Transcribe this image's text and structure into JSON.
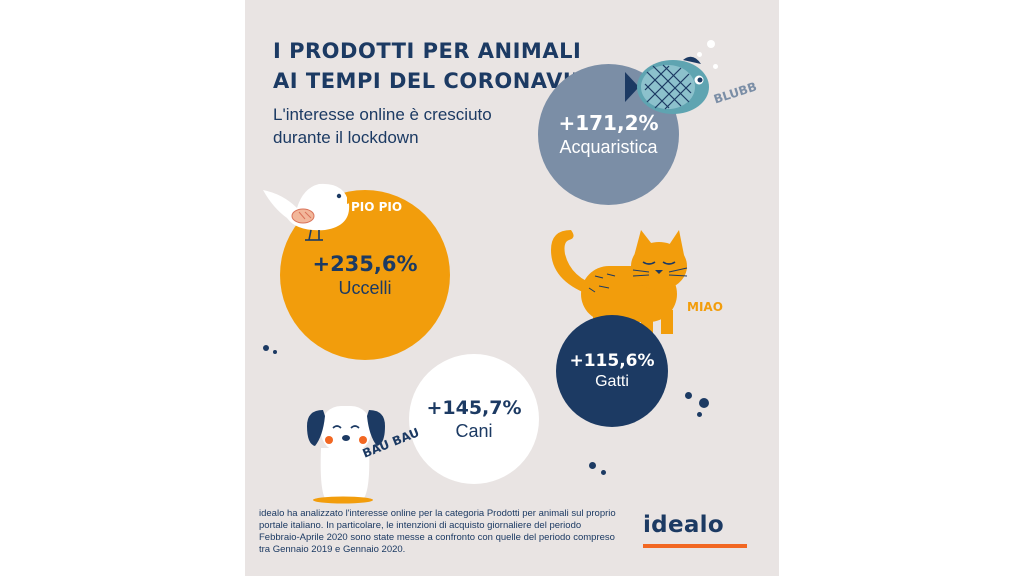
{
  "title": {
    "line1": "I PRODOTTI PER ANIMALI",
    "line2": "AI TEMPI DEL CORONAVIRUS"
  },
  "subtitle": {
    "line1": "L'interesse online è cresciuto",
    "line2": "durante il lockdown"
  },
  "stats": {
    "aquarium": {
      "value": "+171,2%",
      "label": "Acquaristica",
      "color": "#7b8ea6",
      "sound": "BLUBB"
    },
    "birds": {
      "value": "+235,6%",
      "label": "Uccelli",
      "color": "#f29d0c",
      "sound": "PIO PIO"
    },
    "cats": {
      "value": "+115,6%",
      "label": "Gatti",
      "color": "#1c3a63",
      "sound": "MIAO"
    },
    "dogs": {
      "value": "+145,7%",
      "label": "Cani",
      "color": "#ffffff",
      "sound": "BAU BAU"
    }
  },
  "footer": {
    "text": "idealo ha analizzato l'interesse online per la categoria Prodotti per animali sul proprio portale italiano. In particolare, le intenzioni di acquisto giornaliere del periodo Febbraio-Aprile 2020 sono state messe a confronto con quelle del periodo compreso tra Gennaio 2019 e Gennaio 2020."
  },
  "brand": {
    "logo": "idealo",
    "accent": "#f26722",
    "navy": "#1c3a63"
  },
  "icons": [
    "fish-icon",
    "bird-icon",
    "cat-icon",
    "dog-icon"
  ]
}
